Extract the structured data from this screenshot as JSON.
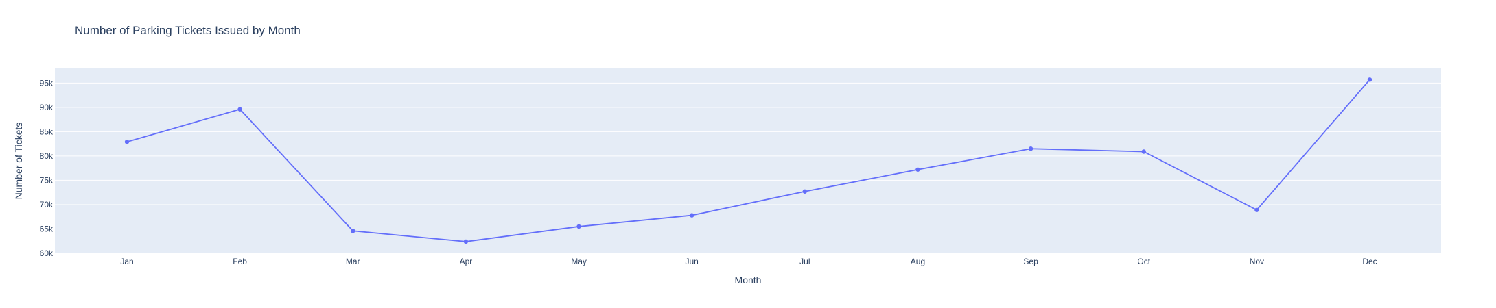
{
  "chart_data": {
    "type": "line",
    "title": "Number of Parking Tickets Issued by Month",
    "xlabel": "Month",
    "ylabel": "Number of Tickets",
    "categories": [
      "Jan",
      "Feb",
      "Mar",
      "Apr",
      "May",
      "Jun",
      "Jul",
      "Aug",
      "Sep",
      "Oct",
      "Nov",
      "Dec"
    ],
    "series": [
      {
        "values": [
          82900,
          89600,
          64600,
          62400,
          65500,
          67800,
          72700,
          77200,
          81500,
          80900,
          68900,
          95700
        ]
      }
    ],
    "ylim": [
      60000,
      98000
    ],
    "yticks": [
      60000,
      65000,
      70000,
      75000,
      80000,
      85000,
      90000,
      95000
    ],
    "ytick_labels": [
      "60k",
      "65k",
      "70k",
      "75k",
      "80k",
      "85k",
      "90k",
      "95k"
    ],
    "grid": true,
    "colors": {
      "line": "#636efa",
      "plot_background": "#e5ecf6",
      "grid": "#ffffff",
      "text": "#2a3f5f"
    }
  }
}
